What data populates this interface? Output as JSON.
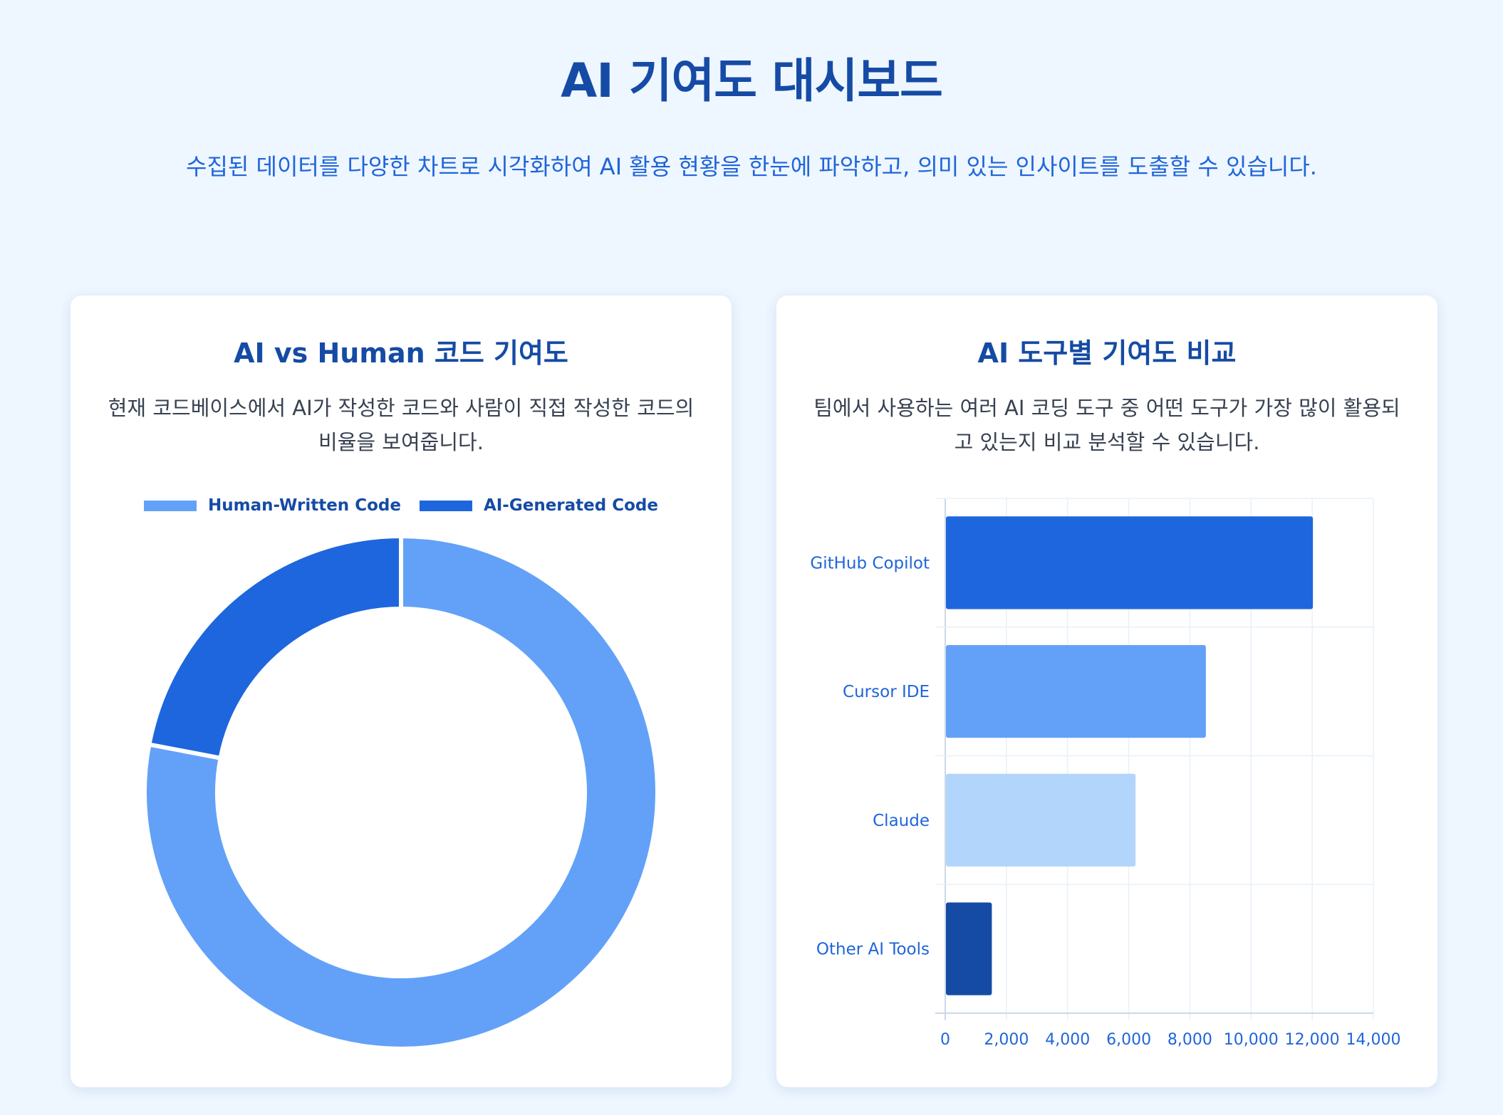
{
  "header": {
    "title": "AI 기여도 대시보드",
    "subtitle": "수집된 데이터를 다양한 차트로 시각화하여 AI 활용 현황을 한눈에 파악하고, 의미 있는 인사이트를 도출할 수 있습니다."
  },
  "cards": {
    "left": {
      "title": "AI vs Human 코드 기여도",
      "description": "현재 코드베이스에서 AI가 작성한 코드와 사람이 직접 작성한 코드의 비율을 보여줍니다."
    },
    "right": {
      "title": "AI 도구별 기여도 비교",
      "description": "팀에서 사용하는 여러 AI 코딩 도구 중 어떤 도구가 가장 많이 활용되고 있는지 비교 분석할 수 있습니다."
    }
  },
  "chart_data": [
    {
      "type": "pie",
      "variant": "doughnut",
      "legend": "top",
      "labels": [
        "Human-Written Code",
        "AI-Generated Code"
      ],
      "values": [
        78,
        22
      ],
      "colors": [
        "#63a1f8",
        "#1e66dd"
      ]
    },
    {
      "type": "bar",
      "orientation": "horizontal",
      "categories": [
        "GitHub Copilot",
        "Cursor IDE",
        "Claude",
        "Other AI Tools"
      ],
      "values": [
        12000,
        8500,
        6200,
        1500
      ],
      "colors": [
        "#1e66dd",
        "#63a1f8",
        "#b2d5fb",
        "#154ba5"
      ],
      "xlim": [
        0,
        14000
      ],
      "xticks": [
        0,
        2000,
        4000,
        6000,
        8000,
        10000,
        12000,
        14000
      ],
      "xtick_labels": [
        "0",
        "2,000",
        "4,000",
        "6,000",
        "8,000",
        "10,000",
        "12,000",
        "14,000"
      ],
      "grid": true
    }
  ]
}
